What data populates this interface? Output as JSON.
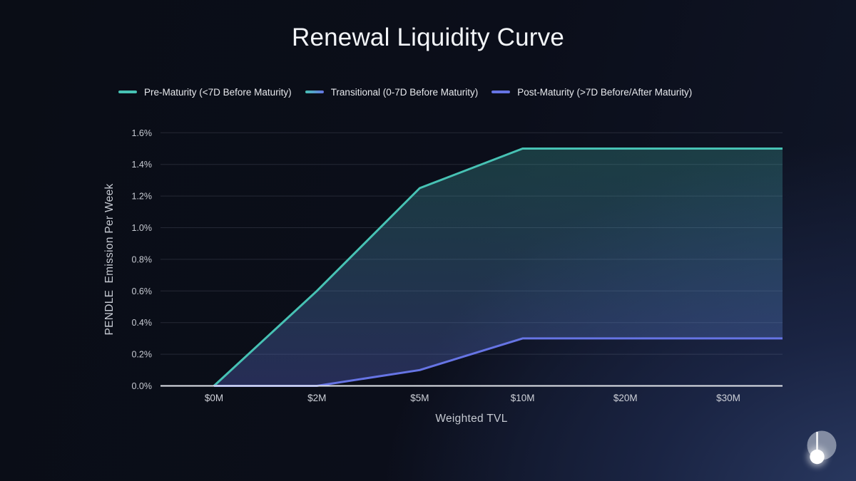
{
  "title": "Renewal Liquidity Curve",
  "legend": {
    "items": [
      {
        "id": "pre-maturity",
        "label": "Pre-Maturity (<7D Before Maturity)",
        "swatch": "solid",
        "color": "#47c2b4"
      },
      {
        "id": "transitional",
        "label": "Transitional (0-7D Before Maturity)",
        "swatch": "gradient",
        "color_start": "#47c2b4",
        "color_end": "#6674e4"
      },
      {
        "id": "post-maturity",
        "label": "Post-Maturity (>7D Before/After Maturity)",
        "swatch": "solid",
        "color": "#6674e4"
      }
    ]
  },
  "chart_data": {
    "type": "area",
    "title": "Renewal Liquidity Curve",
    "categories": [
      "$0M",
      "$2M",
      "$5M",
      "$10M",
      "$20M",
      "$30M"
    ],
    "series": [
      {
        "name": "Pre-Maturity (<7D Before Maturity)",
        "color": "#47c2b4",
        "values": [
          0,
          0.6,
          1.25,
          1.5,
          1.5,
          1.5
        ],
        "extends_flat_to_right_edge": true
      },
      {
        "name": "Post-Maturity (>7D Before/After Maturity)",
        "color": "#6674e4",
        "values": [
          0,
          0,
          0.1,
          0.3,
          0.3,
          0.3
        ],
        "extends_flat_to_right_edge": true
      }
    ],
    "transitional_band": {
      "name": "Transitional (0-7D Before Maturity)",
      "rendered_as": "gradient-filled area between the Pre-Maturity and Post-Maturity curves",
      "gradient_top": "rgba(71,194,180,0.25)",
      "gradient_bottom": "rgba(102,116,228,0.30)"
    },
    "xlabel": "Weighted TVL",
    "ylabel": "PENDLE  Emission Per Week",
    "ylim": [
      0,
      1.6
    ],
    "ytick_unit": "%",
    "yticks": [
      "0.0%",
      "0.2%",
      "0.4%",
      "0.6%",
      "0.8%",
      "1.0%",
      "1.2%",
      "1.4%",
      "1.6%"
    ],
    "grid": true,
    "legend_position": "top"
  },
  "branding": {
    "logo_name": "pendle-pendulum-logo"
  }
}
